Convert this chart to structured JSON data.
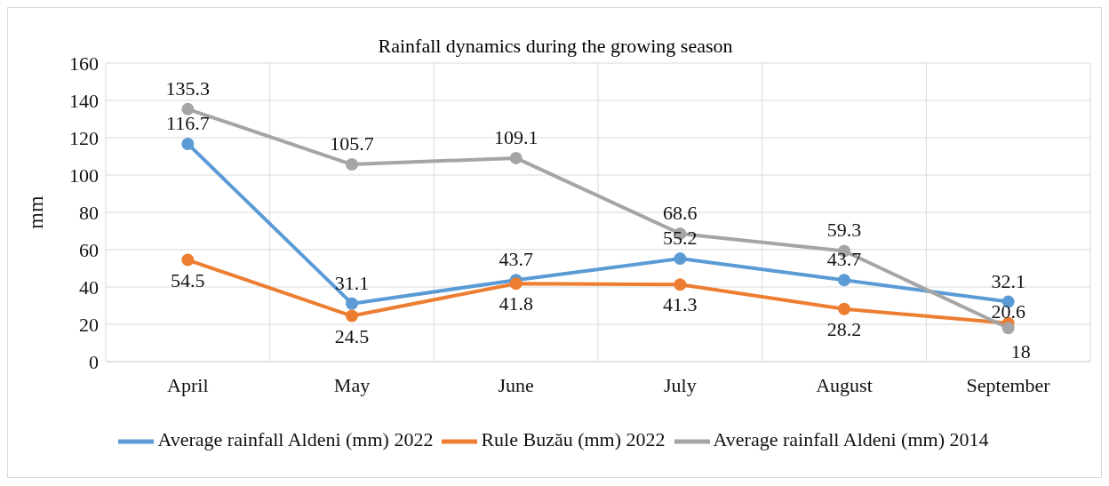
{
  "chart_data": {
    "type": "line",
    "title": "Rainfall dynamics during the growing season",
    "ylabel": "mm",
    "categories": [
      "April",
      "May",
      "June",
      "July",
      "August",
      "September"
    ],
    "series": [
      {
        "name": "Average rainfall Aldeni (mm) 2022",
        "color": "#5b9bd5",
        "values": [
          116.7,
          31.1,
          43.7,
          55.2,
          43.7,
          32.1
        ]
      },
      {
        "name": "Rule Buzău  (mm) 2022",
        "color": "#ed7d31",
        "values": [
          54.5,
          24.5,
          41.8,
          41.3,
          28.2,
          20.6
        ]
      },
      {
        "name": "Average rainfall Aldeni (mm) 2014",
        "color": "#a5a5a5",
        "values": [
          135.3,
          105.7,
          109.1,
          68.6,
          59.3,
          18
        ]
      }
    ],
    "ylim": [
      0,
      160
    ],
    "yticks": [
      0,
      20,
      40,
      60,
      80,
      100,
      120,
      140,
      160
    ],
    "grid": true,
    "legend": "bottom",
    "marker": "circle",
    "line_style": "solid",
    "data_labels": true
  }
}
